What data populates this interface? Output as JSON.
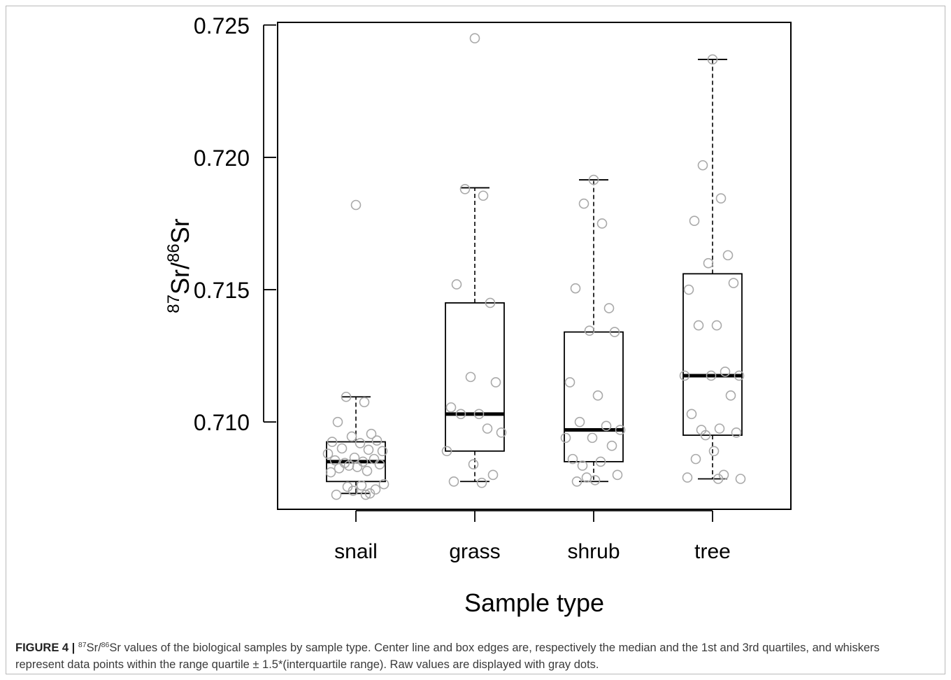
{
  "chart_data": {
    "type": "box",
    "title": "",
    "xlabel": "Sample type",
    "ylabel": {
      "sup1": "87",
      "base1": "Sr/",
      "sup2": "86",
      "base2": "Sr"
    },
    "ylim": [
      0.7067,
      0.7251
    ],
    "yticks": [
      "0.710",
      "0.715",
      "0.720",
      "0.725"
    ],
    "grid": false,
    "categories": [
      "snail",
      "grass",
      "shrub",
      "tree"
    ],
    "boxes": [
      {
        "category": "snail",
        "whisker_low": 0.7073,
        "q1": 0.70775,
        "median": 0.7085,
        "q3": 0.70925,
        "whisker_high": 0.71095
      },
      {
        "category": "grass",
        "whisker_low": 0.70775,
        "q1": 0.7089,
        "median": 0.7103,
        "q3": 0.7145,
        "whisker_high": 0.71885
      },
      {
        "category": "shrub",
        "whisker_low": 0.70775,
        "q1": 0.7085,
        "median": 0.7097,
        "q3": 0.7134,
        "whisker_high": 0.71915
      },
      {
        "category": "tree",
        "whisker_low": 0.70785,
        "q1": 0.7095,
        "median": 0.71175,
        "q3": 0.7156,
        "whisker_high": 0.7237
      }
    ],
    "points": [
      {
        "category": "snail",
        "values": [
          0.7182,
          0.71095,
          0.71075,
          0.71,
          0.70955,
          0.70945,
          0.7093,
          0.70925,
          0.7092,
          0.709,
          0.70895,
          0.7089,
          0.7088,
          0.70865,
          0.7086,
          0.70855,
          0.7085,
          0.70845,
          0.7084,
          0.70835,
          0.7083,
          0.70825,
          0.70815,
          0.7081,
          0.70765,
          0.7076,
          0.70755,
          0.70745,
          0.7074,
          0.7073,
          0.70725,
          0.70725
        ]
      },
      {
        "category": "grass",
        "values": [
          0.7245,
          0.7188,
          0.71855,
          0.7152,
          0.7145,
          0.7117,
          0.7115,
          0.71055,
          0.7103,
          0.7103,
          0.70975,
          0.7096,
          0.7089,
          0.7084,
          0.708,
          0.70775,
          0.7077
        ]
      },
      {
        "category": "shrub",
        "values": [
          0.71915,
          0.71825,
          0.7175,
          0.71505,
          0.7143,
          0.71345,
          0.7134,
          0.7115,
          0.711,
          0.71,
          0.70985,
          0.7097,
          0.7094,
          0.7094,
          0.7091,
          0.7086,
          0.7085,
          0.70835,
          0.708,
          0.7079,
          0.7078,
          0.70775
        ]
      },
      {
        "category": "tree",
        "values": [
          0.7237,
          0.7197,
          0.71845,
          0.7176,
          0.7163,
          0.716,
          0.71525,
          0.715,
          0.71365,
          0.71365,
          0.7119,
          0.71175,
          0.71175,
          0.71175,
          0.711,
          0.7103,
          0.70975,
          0.7097,
          0.7096,
          0.7095,
          0.7089,
          0.7086,
          0.708,
          0.7079,
          0.70785,
          0.70785
        ]
      }
    ],
    "point_color": "#a9a9a9"
  },
  "caption": {
    "label": "FIGURE 4 |",
    "sup1": "87",
    "part1": "Sr/",
    "sup2": "86",
    "text": "Sr values of the biological samples by sample type. Center line and box edges are, respectively the median and the 1st and 3rd quartiles, and whiskers represent data points within the range quartile ± 1.5*(interquartile range). Raw values are displayed with gray dots."
  }
}
